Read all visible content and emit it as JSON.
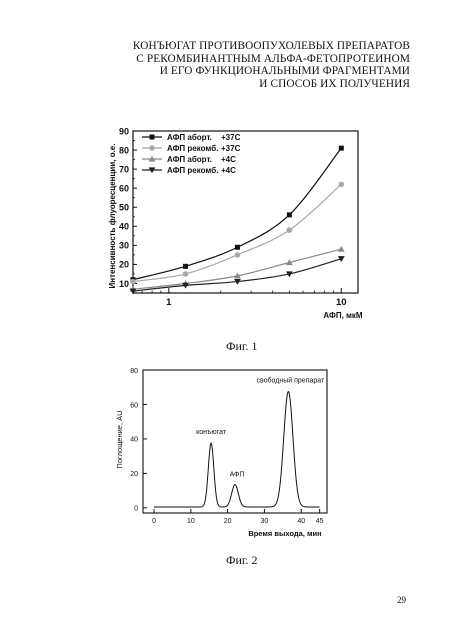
{
  "page": {
    "title_lines": [
      "КОНЪЮГАТ ПРОТИВООПУХОЛЕВЫХ ПРЕПАРАТОВ",
      "С РЕКОМБИНАНТНЫМ АЛЬФА-ФЕТОПРОТЕИНОМ",
      "И ЕГО ФУНКЦИОНАЛЬНЫМИ ФРАГМЕНТАМИ",
      "И СПОСОБ ИХ ПОЛУЧЕНИЯ"
    ],
    "figure1_caption": "Фиг. 1",
    "figure2_caption": "Фиг. 2",
    "page_number": "29"
  },
  "chart_data": [
    {
      "type": "line",
      "title": "",
      "xlabel": "АФП, мкМ",
      "ylabel": "Интенсивность флуоресценции, о.е.",
      "x_scale": "log",
      "xlim": [
        0.62,
        12.5
      ],
      "ylim": [
        5,
        90
      ],
      "x_ticks": [
        1,
        10
      ],
      "x_tick_labels": [
        "1",
        "10"
      ],
      "y_ticks": [
        10,
        20,
        30,
        40,
        50,
        60,
        70,
        80,
        90
      ],
      "y_tick_labels": [
        "10",
        "20",
        "30",
        "40",
        "50",
        "60",
        "70",
        "80",
        "90"
      ],
      "legend_position": "top-left",
      "x": [
        0.62,
        1.25,
        2.5,
        5.0,
        10.0
      ],
      "series": [
        {
          "name": "АФП аборт.",
          "condition": "+37С",
          "marker": "square",
          "color": "#111111",
          "values": [
            12,
            19,
            29,
            46,
            81
          ]
        },
        {
          "name": "АФП рекомб.",
          "condition": "+37С",
          "marker": "circle",
          "color": "#a8a8a8",
          "values": [
            11,
            15,
            25,
            38,
            62
          ]
        },
        {
          "name": "АФП аборт.",
          "condition": "+4С",
          "marker": "triangle-up",
          "color": "#8a8a8a",
          "values": [
            7,
            10,
            14,
            21,
            28
          ]
        },
        {
          "name": "АФП рекомб.",
          "condition": "+4С",
          "marker": "triangle-down",
          "color": "#222222",
          "values": [
            6,
            9,
            11,
            15,
            23
          ]
        }
      ]
    },
    {
      "type": "line",
      "title": "",
      "xlabel": "Время выхода, мин",
      "ylabel": "Поглощение, AU",
      "xlim": [
        -3,
        47
      ],
      "ylim": [
        -3,
        80
      ],
      "x_ticks": [
        0,
        10,
        20,
        30,
        40,
        45
      ],
      "x_tick_labels": [
        "0",
        "10",
        "20",
        "30",
        "40",
        "45"
      ],
      "y_ticks": [
        0,
        20,
        40,
        60,
        80
      ],
      "y_tick_labels": [
        "0",
        "20",
        "40",
        "60",
        "80"
      ],
      "x_range": [
        0,
        45
      ],
      "baseline": 0.5,
      "peaks": [
        {
          "label": "конъюгат",
          "center": 15.5,
          "height": 37,
          "width": 0.75
        },
        {
          "label": "АФП",
          "center": 22.0,
          "height": 13,
          "width": 0.9
        },
        {
          "label": "свободный препарат",
          "center": 36.5,
          "height": 67,
          "width": 1.25
        }
      ],
      "peak_labels": [
        "конъюгат",
        "АФП",
        "свободный препарат"
      ]
    }
  ]
}
